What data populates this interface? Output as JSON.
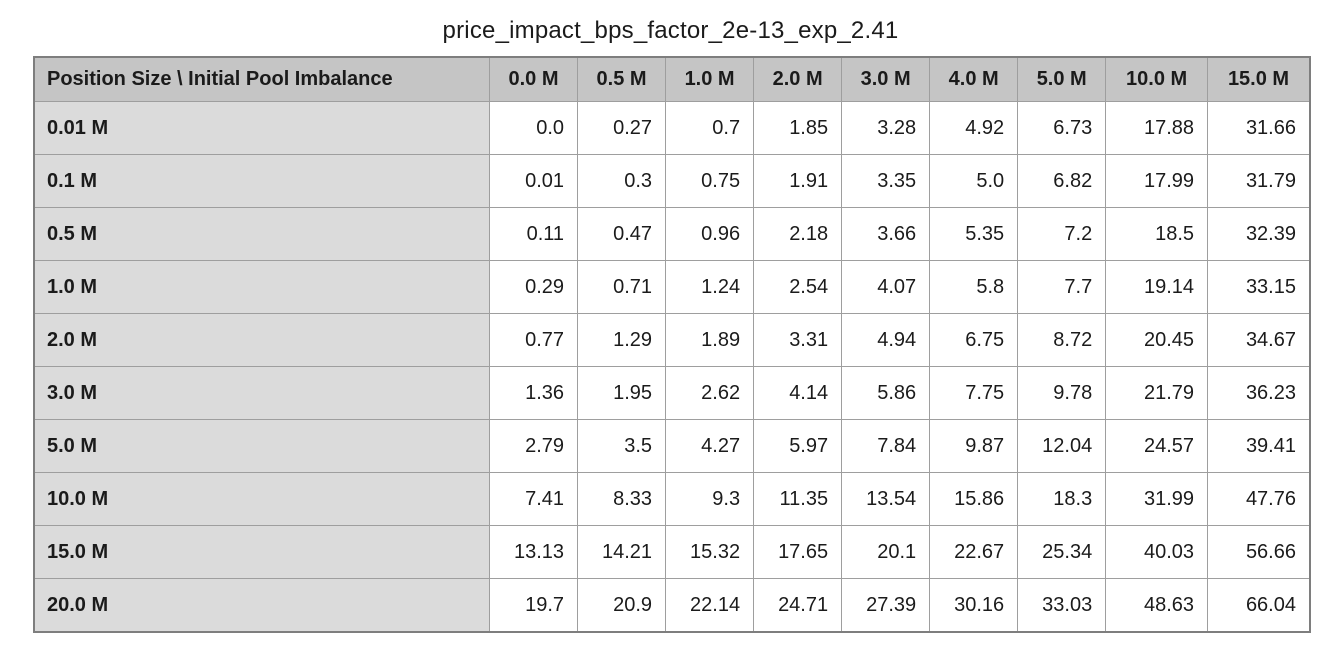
{
  "title": "price_impact_bps_factor_2e-13_exp_2.41",
  "table": {
    "corner_header": "Position Size \\ Initial Pool Imbalance",
    "columns": [
      "0.0 M",
      "0.5 M",
      "1.0 M",
      "2.0 M",
      "3.0 M",
      "4.0 M",
      "5.0 M",
      "10.0 M",
      "15.0 M"
    ],
    "rows": [
      {
        "label": "0.01 M",
        "values": [
          "0.0",
          "0.27",
          "0.7",
          "1.85",
          "3.28",
          "4.92",
          "6.73",
          "17.88",
          "31.66"
        ]
      },
      {
        "label": "0.1 M",
        "values": [
          "0.01",
          "0.3",
          "0.75",
          "1.91",
          "3.35",
          "5.0",
          "6.82",
          "17.99",
          "31.79"
        ]
      },
      {
        "label": "0.5 M",
        "values": [
          "0.11",
          "0.47",
          "0.96",
          "2.18",
          "3.66",
          "5.35",
          "7.2",
          "18.5",
          "32.39"
        ]
      },
      {
        "label": "1.0 M",
        "values": [
          "0.29",
          "0.71",
          "1.24",
          "2.54",
          "4.07",
          "5.8",
          "7.7",
          "19.14",
          "33.15"
        ]
      },
      {
        "label": "2.0 M",
        "values": [
          "0.77",
          "1.29",
          "1.89",
          "3.31",
          "4.94",
          "6.75",
          "8.72",
          "20.45",
          "34.67"
        ]
      },
      {
        "label": "3.0 M",
        "values": [
          "1.36",
          "1.95",
          "2.62",
          "4.14",
          "5.86",
          "7.75",
          "9.78",
          "21.79",
          "36.23"
        ]
      },
      {
        "label": "5.0 M",
        "values": [
          "2.79",
          "3.5",
          "4.27",
          "5.97",
          "7.84",
          "9.87",
          "12.04",
          "24.57",
          "39.41"
        ]
      },
      {
        "label": "10.0 M",
        "values": [
          "7.41",
          "8.33",
          "9.3",
          "11.35",
          "13.54",
          "15.86",
          "18.3",
          "31.99",
          "47.76"
        ]
      },
      {
        "label": "15.0 M",
        "values": [
          "13.13",
          "14.21",
          "15.32",
          "17.65",
          "20.1",
          "22.67",
          "25.34",
          "40.03",
          "56.66"
        ]
      },
      {
        "label": "20.0 M",
        "values": [
          "19.7",
          "20.9",
          "22.14",
          "24.71",
          "27.39",
          "30.16",
          "33.03",
          "48.63",
          "66.04"
        ]
      }
    ]
  },
  "colors": {
    "header_background": "#c5c5c5",
    "row_label_background": "#dbdbdb",
    "cell_background": "#ffffff",
    "grid_border": "#9e9e9e",
    "outer_border": "#7e7e7e",
    "text": "#1b1b1b"
  },
  "chart_data": {
    "type": "table",
    "title": "price_impact_bps_factor_2e-13_exp_2.41",
    "corner_label": "Position Size \\ Initial Pool Imbalance",
    "columns": [
      "0.0 M",
      "0.5 M",
      "1.0 M",
      "2.0 M",
      "3.0 M",
      "4.0 M",
      "5.0 M",
      "10.0 M",
      "15.0 M"
    ],
    "row_labels": [
      "0.01 M",
      "0.1 M",
      "0.5 M",
      "1.0 M",
      "2.0 M",
      "3.0 M",
      "5.0 M",
      "10.0 M",
      "15.0 M",
      "20.0 M"
    ],
    "values": [
      [
        0.0,
        0.27,
        0.7,
        1.85,
        3.28,
        4.92,
        6.73,
        17.88,
        31.66
      ],
      [
        0.01,
        0.3,
        0.75,
        1.91,
        3.35,
        5.0,
        6.82,
        17.99,
        31.79
      ],
      [
        0.11,
        0.47,
        0.96,
        2.18,
        3.66,
        5.35,
        7.2,
        18.5,
        32.39
      ],
      [
        0.29,
        0.71,
        1.24,
        2.54,
        4.07,
        5.8,
        7.7,
        19.14,
        33.15
      ],
      [
        0.77,
        1.29,
        1.89,
        3.31,
        4.94,
        6.75,
        8.72,
        20.45,
        34.67
      ],
      [
        1.36,
        1.95,
        2.62,
        4.14,
        5.86,
        7.75,
        9.78,
        21.79,
        36.23
      ],
      [
        2.79,
        3.5,
        4.27,
        5.97,
        7.84,
        9.87,
        12.04,
        24.57,
        39.41
      ],
      [
        7.41,
        8.33,
        9.3,
        11.35,
        13.54,
        15.86,
        18.3,
        31.99,
        47.76
      ],
      [
        13.13,
        14.21,
        15.32,
        17.65,
        20.1,
        22.67,
        25.34,
        40.03,
        56.66
      ],
      [
        19.7,
        20.9,
        22.14,
        24.71,
        27.39,
        30.16,
        33.03,
        48.63,
        66.04
      ]
    ]
  }
}
